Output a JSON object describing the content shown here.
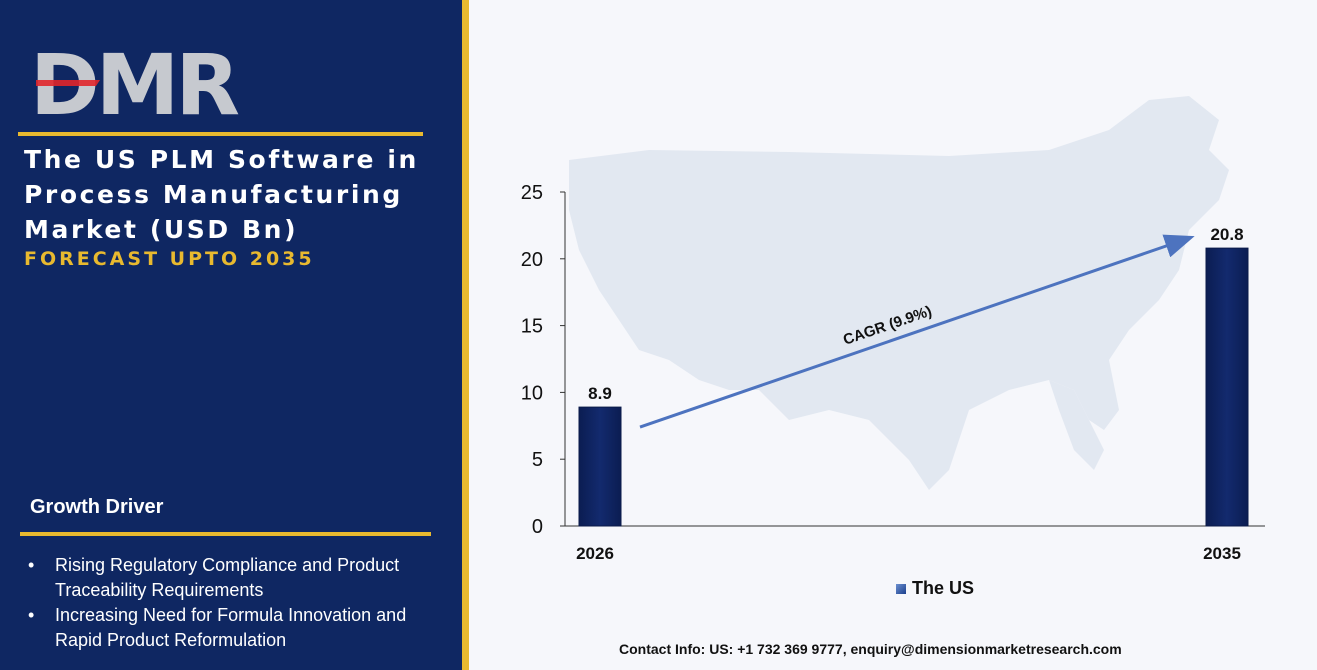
{
  "logo": {
    "text": "DMR"
  },
  "panel": {
    "title": "The US PLM Software in Process Manufacturing Market (USD Bn)",
    "subtitle": "FORECAST UPTO 2035",
    "growth_driver_label": "Growth Driver",
    "bullet_glyph": "•",
    "drivers": [
      "Rising Regulatory Compliance and Product Traceability Requirements",
      "Increasing Need for Formula Innovation and Rapid Product Reformulation"
    ]
  },
  "colors": {
    "panel_bg": "#0f2762",
    "accent_gold": "#e8b92f",
    "bar_fill": "#132a6e",
    "arrow": "#4d73bf",
    "map": "#e2e8f1"
  },
  "chart_data": {
    "type": "bar",
    "categories": [
      "2026",
      "2035"
    ],
    "series": [
      {
        "name": "The US",
        "values": [
          8.9,
          20.8
        ]
      }
    ],
    "data_labels": [
      "8.9",
      "20.8"
    ],
    "ylim": [
      0,
      25
    ],
    "yticks": [
      0,
      5,
      10,
      15,
      20,
      25
    ],
    "annotation": "CAGR (9.9%)",
    "legend_position": "bottom",
    "grid": false,
    "background": "US map silhouette"
  },
  "footer": {
    "contact": "Contact Info: US: +1 732 369 9777, enquiry@dimensionmarketresearch.com"
  }
}
